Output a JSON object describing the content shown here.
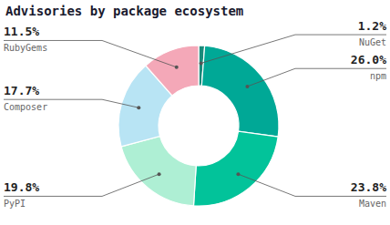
{
  "chart_data": {
    "type": "pie",
    "title": "Advisories by package ecosystem",
    "categories": [
      "NuGet",
      "npm",
      "Maven",
      "PyPI",
      "Composer",
      "RubyGems"
    ],
    "values": [
      1.2,
      26.0,
      23.8,
      19.8,
      17.7,
      11.5
    ],
    "value_labels": [
      "1.2%",
      "26.0%",
      "23.8%",
      "19.8%",
      "17.7%",
      "11.5%"
    ],
    "colors": [
      "#1a8a7a",
      "#00a896",
      "#02c39a",
      "#aeefd4",
      "#b8e4f4",
      "#f4a8b8"
    ],
    "data_labels": true
  }
}
